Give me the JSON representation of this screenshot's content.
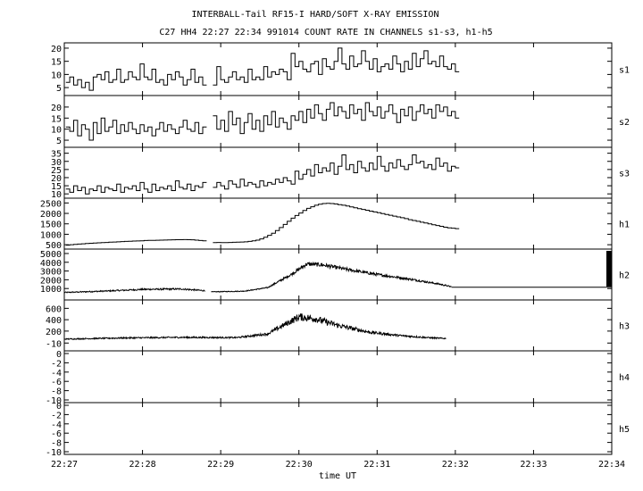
{
  "chart_data": {
    "type": "line",
    "title": "INTERBALL-Tail RF15-I HARD/SOFT X-RAY EMISSION",
    "subtitle": "C27 HH4 22:27 22:34 991014  COUNT RATE IN CHANNELS s1-s3, h1-h5",
    "xlabel": "time UT",
    "xlim": [
      0,
      7
    ],
    "x_ticks": [
      {
        "v": 0,
        "label": "22:27"
      },
      {
        "v": 1,
        "label": "22:28"
      },
      {
        "v": 2,
        "label": "22:29"
      },
      {
        "v": 3,
        "label": "22:30"
      },
      {
        "v": 4,
        "label": "22:31"
      },
      {
        "v": 5,
        "label": "22:32"
      },
      {
        "v": 6,
        "label": "22:33"
      },
      {
        "v": 7,
        "label": "22:34"
      }
    ],
    "panels": [
      {
        "name": "s1",
        "style": "step",
        "ylim": [
          3,
          21
        ],
        "yticks": [
          {
            "v": 5,
            "label": "5"
          },
          {
            "v": 10,
            "label": "10"
          },
          {
            "v": 15,
            "label": "15"
          },
          {
            "v": 20,
            "label": "20"
          }
        ],
        "segments": [
          {
            "x0": 0.02,
            "dx": 0.05,
            "values": [
              7,
              9,
              6,
              8,
              5,
              7,
              4,
              9,
              10,
              8,
              11,
              7,
              8,
              12,
              7,
              8,
              11,
              9,
              8,
              14,
              9,
              8,
              12,
              7,
              8,
              6,
              10,
              8,
              11,
              9,
              6,
              8,
              12,
              7,
              9,
              6
            ]
          },
          {
            "x0": 1.9,
            "dx": 0.05,
            "values": [
              6,
              13,
              8,
              7,
              9,
              11,
              8,
              9,
              7,
              12,
              8,
              9,
              8,
              13,
              9,
              11,
              10,
              12,
              11,
              8,
              18,
              13,
              15,
              12,
              11,
              14,
              15,
              10,
              16,
              13,
              12,
              15,
              20,
              14,
              12,
              17,
              13,
              14,
              19,
              15,
              12,
              16,
              11,
              13,
              14,
              12,
              17,
              14,
              11,
              15,
              12,
              18,
              13,
              16,
              19,
              14,
              15,
              13,
              17,
              13,
              12,
              14,
              11
            ]
          }
        ]
      },
      {
        "name": "s2",
        "style": "step",
        "ylim": [
          3,
          24
        ],
        "yticks": [
          {
            "v": 5,
            "label": "5"
          },
          {
            "v": 10,
            "label": "10"
          },
          {
            "v": 15,
            "label": "15"
          },
          {
            "v": 20,
            "label": "20"
          }
        ],
        "segments": [
          {
            "x0": 0.02,
            "dx": 0.05,
            "values": [
              11,
              9,
              14,
              7,
              12,
              10,
              5,
              13,
              8,
              15,
              9,
              11,
              14,
              8,
              12,
              9,
              13,
              10,
              8,
              12,
              9,
              11,
              7,
              10,
              13,
              9,
              12,
              10,
              8,
              11,
              14,
              10,
              9,
              13,
              8,
              11
            ]
          },
          {
            "x0": 1.9,
            "dx": 0.05,
            "values": [
              16,
              10,
              14,
              9,
              18,
              12,
              15,
              8,
              13,
              17,
              10,
              14,
              9,
              16,
              12,
              18,
              11,
              15,
              13,
              10,
              16,
              14,
              18,
              13,
              19,
              15,
              21,
              17,
              14,
              19,
              22,
              16,
              20,
              18,
              15,
              21,
              17,
              19,
              14,
              22,
              18,
              16,
              20,
              15,
              18,
              21,
              17,
              13,
              19,
              16,
              20,
              14,
              18,
              21,
              17,
              19,
              15,
              21,
              18,
              20,
              16,
              18,
              15
            ]
          }
        ]
      },
      {
        "name": "s3",
        "style": "step",
        "ylim": [
          9,
          37
        ],
        "yticks": [
          {
            "v": 10,
            "label": "10"
          },
          {
            "v": 15,
            "label": "15"
          },
          {
            "v": 20,
            "label": "20"
          },
          {
            "v": 25,
            "label": "25"
          },
          {
            "v": 30,
            "label": "30"
          },
          {
            "v": 35,
            "label": "35"
          }
        ],
        "segments": [
          {
            "x0": 0.02,
            "dx": 0.05,
            "values": [
              13,
              11,
              15,
              12,
              14,
              10,
              13,
              12,
              15,
              11,
              14,
              13,
              12,
              16,
              11,
              14,
              13,
              15,
              12,
              17,
              13,
              11,
              16,
              12,
              14,
              13,
              15,
              12,
              18,
              14,
              13,
              16,
              12,
              15,
              14,
              17
            ]
          },
          {
            "x0": 1.9,
            "dx": 0.05,
            "values": [
              14,
              17,
              15,
              13,
              18,
              16,
              14,
              19,
              15,
              17,
              16,
              14,
              18,
              15,
              17,
              16,
              19,
              17,
              20,
              18,
              16,
              24,
              19,
              22,
              25,
              21,
              28,
              23,
              26,
              24,
              29,
              22,
              27,
              34,
              25,
              28,
              23,
              30,
              26,
              24,
              29,
              25,
              33,
              27,
              24,
              29,
              26,
              31,
              27,
              25,
              28,
              34,
              29,
              30,
              26,
              28,
              25,
              32,
              27,
              29,
              24,
              27,
              26
            ]
          }
        ]
      },
      {
        "name": "h1",
        "style": "step",
        "ylim": [
          420,
          2600
        ],
        "yticks": [
          {
            "v": 500,
            "label": "500"
          },
          {
            "v": 1000,
            "label": "1000"
          },
          {
            "v": 1500,
            "label": "1500"
          },
          {
            "v": 2000,
            "label": "2000"
          },
          {
            "v": 2500,
            "label": "2500"
          }
        ],
        "segments": [
          {
            "x0": 0.02,
            "dx": 0.05,
            "values": [
              480,
              500,
              515,
              530,
              545,
              560,
              570,
              580,
              590,
              600,
              610,
              620,
              630,
              640,
              650,
              660,
              670,
              675,
              680,
              690,
              700,
              705,
              710,
              715,
              720,
              725,
              730,
              735,
              740,
              740,
              745,
              740,
              735,
              720,
              700,
              690
            ]
          },
          {
            "x0": 1.9,
            "dx": 0.05,
            "values": [
              600,
              610,
              605,
              600,
              610,
              615,
              620,
              630,
              640,
              660,
              690,
              720,
              780,
              860,
              950,
              1050,
              1180,
              1320,
              1470,
              1620,
              1770,
              1900,
              2020,
              2140,
              2240,
              2320,
              2390,
              2440,
              2470,
              2480,
              2470,
              2450,
              2420,
              2390,
              2350,
              2310,
              2270,
              2230,
              2190,
              2150,
              2110,
              2070,
              2030,
              1990,
              1950,
              1910,
              1870,
              1830,
              1790,
              1750,
              1700,
              1660,
              1620,
              1580,
              1540,
              1500,
              1460,
              1420,
              1380,
              1340,
              1310,
              1290,
              1270
            ]
          }
        ]
      },
      {
        "name": "h2",
        "style": "noisy",
        "ylim": [
          0,
          5200
        ],
        "yticks": [
          {
            "v": 1000,
            "label": "1000"
          },
          {
            "v": 2000,
            "label": "2000"
          },
          {
            "v": 3000,
            "label": "3000"
          },
          {
            "v": 4000,
            "label": "4000"
          },
          {
            "v": 5000,
            "label": "5000"
          }
        ],
        "noise": 0.06,
        "segments": [
          {
            "x": [
              0.0,
              0.5,
              1.0,
              1.5,
              1.8
            ],
            "y": [
              550,
              700,
              900,
              950,
              750
            ],
            "noise": 0.1
          },
          {
            "x": [
              1.88,
              2.3,
              2.6,
              2.9,
              3.1,
              3.3,
              3.6,
              4.0,
              4.4,
              4.8,
              4.95
            ],
            "y": [
              620,
              700,
              1100,
              2600,
              3800,
              3700,
              3200,
              2600,
              2100,
              1500,
              1200
            ]
          },
          {
            "x": [
              4.95,
              7.0
            ],
            "y": [
              1150,
              1150
            ],
            "noise": 0
          }
        ]
      },
      {
        "name": "h3",
        "style": "noisy",
        "ylim": [
          -100,
          700
        ],
        "yticks": [
          {
            "v": -10,
            "label": "-10"
          },
          {
            "v": 200,
            "label": "200"
          },
          {
            "v": 400,
            "label": "400"
          },
          {
            "v": 600,
            "label": "600"
          }
        ],
        "noise": 0.15,
        "segments": [
          {
            "x": [
              0.0,
              0.8,
              1.5,
              2.2,
              2.6,
              2.8,
              3.0,
              3.2,
              3.5,
              3.9,
              4.3,
              4.7,
              4.88
            ],
            "y": [
              60,
              80,
              90,
              85,
              150,
              300,
              450,
              420,
              300,
              180,
              120,
              80,
              70
            ]
          }
        ]
      },
      {
        "name": "h4",
        "style": "none",
        "ylim": [
          -10,
          0
        ],
        "yticks": [
          {
            "v": -10,
            "label": "-10"
          },
          {
            "v": -8,
            "label": "-8"
          },
          {
            "v": -6,
            "label": "-6"
          },
          {
            "v": -4,
            "label": "-4"
          },
          {
            "v": -2,
            "label": "-2"
          },
          {
            "v": 0,
            "label": "0"
          }
        ],
        "segments": []
      },
      {
        "name": "h5",
        "style": "none",
        "ylim": [
          -10,
          0
        ],
        "yticks": [
          {
            "v": -10,
            "label": "-10"
          },
          {
            "v": -8,
            "label": "-8"
          },
          {
            "v": -6,
            "label": "-6"
          },
          {
            "v": -4,
            "label": "-4"
          },
          {
            "v": -2,
            "label": "-2"
          },
          {
            "v": 0,
            "label": "0"
          }
        ],
        "segments": []
      }
    ]
  }
}
